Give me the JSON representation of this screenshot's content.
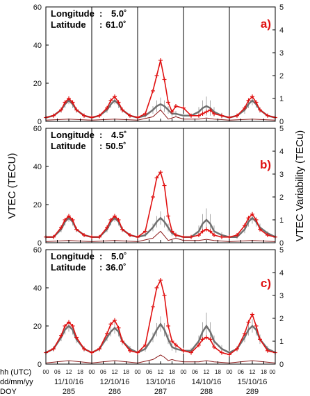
{
  "figure": {
    "y_left_label": "VTEC (TECU)",
    "y_right_label": "VTEC Variability (TECu)",
    "row_labels": [
      "hh (UTC)",
      "dd/mm/yy",
      "DOY"
    ],
    "hour_ticks": [
      "00",
      "06",
      "12",
      "18"
    ],
    "end_hour_tick": "00",
    "dates": [
      "11/10/16",
      "12/10/16",
      "13/10/16",
      "14/10/16",
      "15/10/16"
    ],
    "doy": [
      "285",
      "286",
      "287",
      "288",
      "289"
    ],
    "colors": {
      "vtec_storm": "#e01010",
      "vtec_mean": "#707070",
      "variability": "#8b1a1a",
      "frame": "#000000"
    }
  },
  "panels": [
    {
      "label": "a)",
      "lon_label": "Longitude",
      "lon_value": "5.0˚",
      "lat_label": "Latitude",
      "lat_value": "61.0˚"
    },
    {
      "label": "b)",
      "lon_label": "Longitude",
      "lon_value": "4.5˚",
      "lat_label": "Latitude",
      "lat_value": "50.5˚"
    },
    {
      "label": "c)",
      "lon_label": "Longitude",
      "lon_value": "5.0˚",
      "lat_label": "Latitude",
      "lat_value": "36.0˚"
    }
  ],
  "chart_data": [
    {
      "type": "line",
      "panel": "a)",
      "xlabel": "hh (UTC)",
      "ylabel": "VTEC (TECU)",
      "y2label": "VTEC Variability (TECu)",
      "xlim_hours": [
        0,
        120
      ],
      "ylim": [
        0,
        60
      ],
      "y_ticks": [
        0,
        20,
        40,
        60
      ],
      "y2lim": [
        0,
        5
      ],
      "y2_ticks": [
        0,
        1,
        2,
        3,
        4,
        5
      ],
      "day_separators_hours": [
        24,
        48,
        72,
        96
      ],
      "series": [
        {
          "name": "",
          "axis": "left",
          "style": "red-plus",
          "x": [
            0,
            4,
            8,
            10,
            12,
            14,
            16,
            20,
            24,
            28,
            32,
            34,
            36,
            38,
            40,
            44,
            48,
            52,
            56,
            58,
            60,
            62,
            64,
            66,
            68,
            72,
            76,
            80,
            82,
            84,
            86,
            88,
            92,
            96,
            100,
            104,
            106,
            108,
            110,
            112,
            116,
            120
          ],
          "y": [
            2,
            3,
            6,
            10,
            12,
            10,
            6,
            3,
            2,
            3,
            7,
            11,
            13,
            10,
            6,
            3,
            2,
            4,
            16,
            24,
            32,
            22,
            10,
            5,
            8,
            7,
            3,
            3,
            4,
            5,
            6,
            4,
            3,
            2,
            3,
            7,
            11,
            13,
            10,
            6,
            3,
            2
          ]
        },
        {
          "name": "",
          "axis": "left",
          "style": "grey-mean-with-spread",
          "x": [
            0,
            4,
            8,
            10,
            12,
            14,
            16,
            20,
            24,
            28,
            32,
            34,
            36,
            38,
            40,
            44,
            48,
            52,
            56,
            58,
            60,
            62,
            64,
            66,
            68,
            72,
            76,
            80,
            82,
            84,
            86,
            88,
            92,
            96,
            100,
            104,
            106,
            108,
            110,
            112,
            116,
            120
          ],
          "y": [
            2,
            3,
            6,
            9,
            11,
            9,
            6,
            3,
            2,
            3,
            6,
            9,
            11,
            9,
            6,
            3,
            2,
            3,
            6,
            8,
            9,
            8,
            6,
            4,
            4,
            3,
            3,
            5,
            7,
            8,
            7,
            5,
            3,
            2,
            3,
            6,
            9,
            11,
            9,
            6,
            3,
            2
          ],
          "spread": [
            0.5,
            1,
            1.5,
            2,
            2,
            2,
            1.5,
            1,
            0.5,
            1,
            1.5,
            2,
            2,
            2,
            1.5,
            1,
            0.5,
            1,
            2,
            3,
            3.5,
            3,
            2,
            1.5,
            1.5,
            1,
            1,
            2.5,
            4,
            5,
            4,
            2.5,
            1.5,
            0.5,
            1,
            2,
            2,
            2.5,
            2,
            1.5,
            1,
            0.5
          ]
        },
        {
          "name": "",
          "axis": "right",
          "style": "dark-red-line",
          "x": [
            0,
            12,
            24,
            36,
            48,
            56,
            58,
            60,
            62,
            64,
            66,
            68,
            72,
            80,
            84,
            88,
            96,
            108,
            120
          ],
          "y": [
            0.05,
            0.1,
            0.05,
            0.1,
            0.05,
            0.2,
            0.35,
            0.5,
            0.3,
            0.1,
            0.15,
            0.2,
            0.1,
            0.1,
            0.15,
            0.1,
            0.05,
            0.1,
            0.05
          ]
        }
      ]
    },
    {
      "type": "line",
      "panel": "b)",
      "xlabel": "hh (UTC)",
      "ylabel": "VTEC (TECU)",
      "y2label": "VTEC Variability (TECu)",
      "xlim_hours": [
        0,
        120
      ],
      "ylim": [
        0,
        60
      ],
      "y_ticks": [
        0,
        20,
        40,
        60
      ],
      "y2lim": [
        0,
        5
      ],
      "y2_ticks": [
        0,
        1,
        2,
        3,
        4,
        5
      ],
      "day_separators_hours": [
        24,
        48,
        72,
        96
      ],
      "series": [
        {
          "name": "",
          "axis": "left",
          "style": "red-plus",
          "x": [
            0,
            4,
            8,
            10,
            12,
            14,
            16,
            20,
            24,
            28,
            32,
            34,
            36,
            38,
            40,
            44,
            48,
            52,
            56,
            58,
            60,
            62,
            64,
            66,
            68,
            72,
            76,
            80,
            82,
            84,
            86,
            88,
            92,
            96,
            100,
            104,
            106,
            108,
            110,
            112,
            116,
            120
          ],
          "y": [
            3,
            3,
            8,
            12,
            14,
            12,
            7,
            4,
            3,
            3,
            8,
            12,
            14,
            12,
            7,
            4,
            3,
            6,
            24,
            34,
            37,
            30,
            14,
            6,
            4,
            3,
            3,
            4,
            6,
            7,
            6,
            4,
            3,
            3,
            4,
            9,
            13,
            15,
            12,
            7,
            4,
            3
          ]
        },
        {
          "name": "",
          "axis": "left",
          "style": "grey-mean-with-spread",
          "x": [
            0,
            4,
            8,
            10,
            12,
            14,
            16,
            20,
            24,
            28,
            32,
            34,
            36,
            38,
            40,
            44,
            48,
            52,
            56,
            58,
            60,
            62,
            64,
            66,
            68,
            72,
            76,
            80,
            82,
            84,
            86,
            88,
            92,
            96,
            100,
            104,
            106,
            108,
            110,
            112,
            116,
            120
          ],
          "y": [
            3,
            3,
            7,
            11,
            13,
            11,
            7,
            4,
            3,
            3,
            7,
            11,
            13,
            11,
            7,
            4,
            3,
            4,
            8,
            11,
            13,
            11,
            8,
            5,
            4,
            3,
            3,
            6,
            10,
            12,
            10,
            6,
            4,
            3,
            3,
            7,
            11,
            13,
            11,
            8,
            5,
            3
          ],
          "spread": [
            0.5,
            1,
            1.5,
            2,
            2,
            2,
            1.5,
            1,
            0.5,
            1,
            1.5,
            2,
            2,
            2,
            1.5,
            1,
            0.5,
            1,
            2,
            3,
            3.5,
            3,
            2,
            1.5,
            1.5,
            1,
            1,
            3,
            5,
            6,
            5,
            3,
            1.5,
            0.5,
            1,
            2,
            2.5,
            3,
            2.5,
            2,
            1,
            0.5
          ]
        },
        {
          "name": "",
          "axis": "right",
          "style": "dark-red-line",
          "x": [
            0,
            12,
            24,
            36,
            48,
            56,
            58,
            60,
            62,
            64,
            66,
            68,
            72,
            80,
            84,
            88,
            96,
            108,
            120
          ],
          "y": [
            0.05,
            0.1,
            0.05,
            0.1,
            0.05,
            0.2,
            0.35,
            0.5,
            0.3,
            0.1,
            0.15,
            0.2,
            0.1,
            0.1,
            0.15,
            0.1,
            0.05,
            0.1,
            0.05
          ]
        }
      ]
    },
    {
      "type": "line",
      "panel": "c)",
      "xlabel": "hh (UTC)",
      "ylabel": "VTEC (TECU)",
      "y2label": "VTEC Variability (TECu)",
      "xlim_hours": [
        0,
        120
      ],
      "ylim": [
        0,
        60
      ],
      "y_ticks": [
        0,
        20,
        40,
        60
      ],
      "y2lim": [
        0,
        5
      ],
      "y2_ticks": [
        0,
        1,
        2,
        3,
        4,
        5
      ],
      "day_separators_hours": [
        24,
        48,
        72,
        96
      ],
      "series": [
        {
          "name": "",
          "axis": "left",
          "style": "red-plus",
          "x": [
            0,
            4,
            8,
            10,
            12,
            14,
            16,
            20,
            24,
            28,
            32,
            34,
            36,
            38,
            40,
            44,
            48,
            52,
            56,
            58,
            60,
            62,
            64,
            66,
            68,
            72,
            76,
            80,
            82,
            84,
            86,
            88,
            92,
            96,
            100,
            104,
            106,
            108,
            110,
            112,
            116,
            120
          ],
          "y": [
            6,
            8,
            15,
            20,
            22,
            20,
            14,
            8,
            6,
            8,
            16,
            21,
            23,
            19,
            12,
            7,
            6,
            10,
            30,
            40,
            44,
            36,
            20,
            12,
            10,
            7,
            6,
            10,
            13,
            14,
            13,
            9,
            6,
            5,
            8,
            16,
            22,
            26,
            20,
            13,
            7,
            6
          ]
        },
        {
          "name": "",
          "axis": "left",
          "style": "grey-mean-with-spread",
          "x": [
            0,
            4,
            8,
            10,
            12,
            14,
            16,
            20,
            24,
            28,
            32,
            34,
            36,
            38,
            40,
            44,
            48,
            52,
            56,
            58,
            60,
            62,
            64,
            66,
            68,
            72,
            76,
            80,
            82,
            84,
            86,
            88,
            92,
            96,
            100,
            104,
            106,
            108,
            110,
            112,
            116,
            120
          ],
          "y": [
            6,
            8,
            14,
            18,
            20,
            18,
            13,
            8,
            6,
            8,
            14,
            17,
            19,
            17,
            12,
            8,
            6,
            8,
            14,
            18,
            21,
            18,
            13,
            9,
            8,
            7,
            7,
            12,
            17,
            20,
            17,
            12,
            8,
            6,
            8,
            14,
            18,
            20,
            18,
            13,
            8,
            6
          ],
          "spread": [
            1,
            1.5,
            2,
            2.5,
            3,
            2.5,
            2,
            1.5,
            1,
            1.5,
            2,
            2.5,
            3,
            2.5,
            2,
            1.5,
            1,
            1.5,
            2.5,
            3.5,
            4,
            3.5,
            2.5,
            2,
            2,
            1.5,
            1.5,
            3,
            5,
            7,
            5,
            3,
            2,
            1,
            1.5,
            2.5,
            3,
            3.5,
            3,
            2.5,
            1.5,
            1
          ]
        },
        {
          "name": "",
          "axis": "right",
          "style": "dark-red-line",
          "x": [
            0,
            12,
            24,
            36,
            48,
            56,
            58,
            60,
            62,
            64,
            66,
            68,
            72,
            80,
            84,
            88,
            96,
            108,
            120
          ],
          "y": [
            0.05,
            0.15,
            0.05,
            0.15,
            0.05,
            0.2,
            0.3,
            0.4,
            0.3,
            0.15,
            0.2,
            0.15,
            0.1,
            0.1,
            0.15,
            0.1,
            0.05,
            0.15,
            0.05
          ]
        }
      ]
    }
  ]
}
